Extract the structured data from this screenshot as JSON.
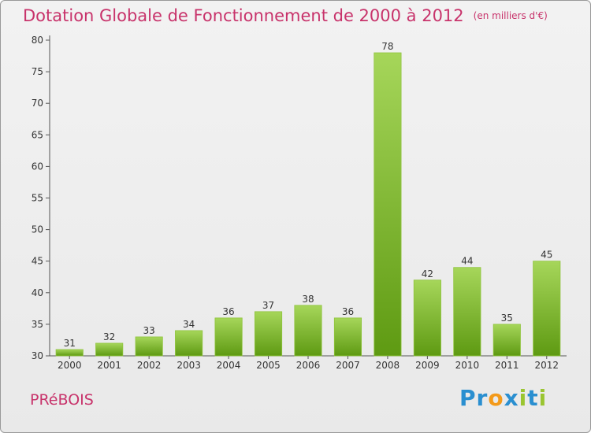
{
  "title": "Dotation Globale de Fonctionnement de 2000 à 2012",
  "unit": "(en milliers d'€)",
  "commune": "PRéBOIS",
  "logo": {
    "letters": [
      "P",
      "r",
      "o",
      "x",
      "i",
      "t",
      "i"
    ],
    "colors": [
      "#2a8fd0",
      "#2a8fd0",
      "#f39a1a",
      "#2a8fd0",
      "#9ac531",
      "#2a8fd0",
      "#9ac531"
    ]
  },
  "colors": {
    "title": "#c8336b",
    "bar_light": "#a6d65a",
    "bar_dark": "#5e9a12"
  },
  "chart_data": {
    "type": "bar",
    "categories": [
      "2000",
      "2001",
      "2002",
      "2003",
      "2004",
      "2005",
      "2006",
      "2007",
      "2008",
      "2009",
      "2010",
      "2011",
      "2012"
    ],
    "values": [
      31,
      32,
      33,
      34,
      36,
      37,
      38,
      36,
      78,
      42,
      44,
      35,
      45
    ],
    "data_labels": [
      "31",
      "32",
      "33",
      "34",
      "36",
      "37",
      "38",
      "36",
      "78",
      "42",
      "44",
      "35",
      "45"
    ],
    "ylim": [
      30,
      80
    ],
    "yticks": [
      30,
      35,
      40,
      45,
      50,
      55,
      60,
      65,
      70,
      75,
      80
    ],
    "grid": false,
    "legend": "none"
  }
}
